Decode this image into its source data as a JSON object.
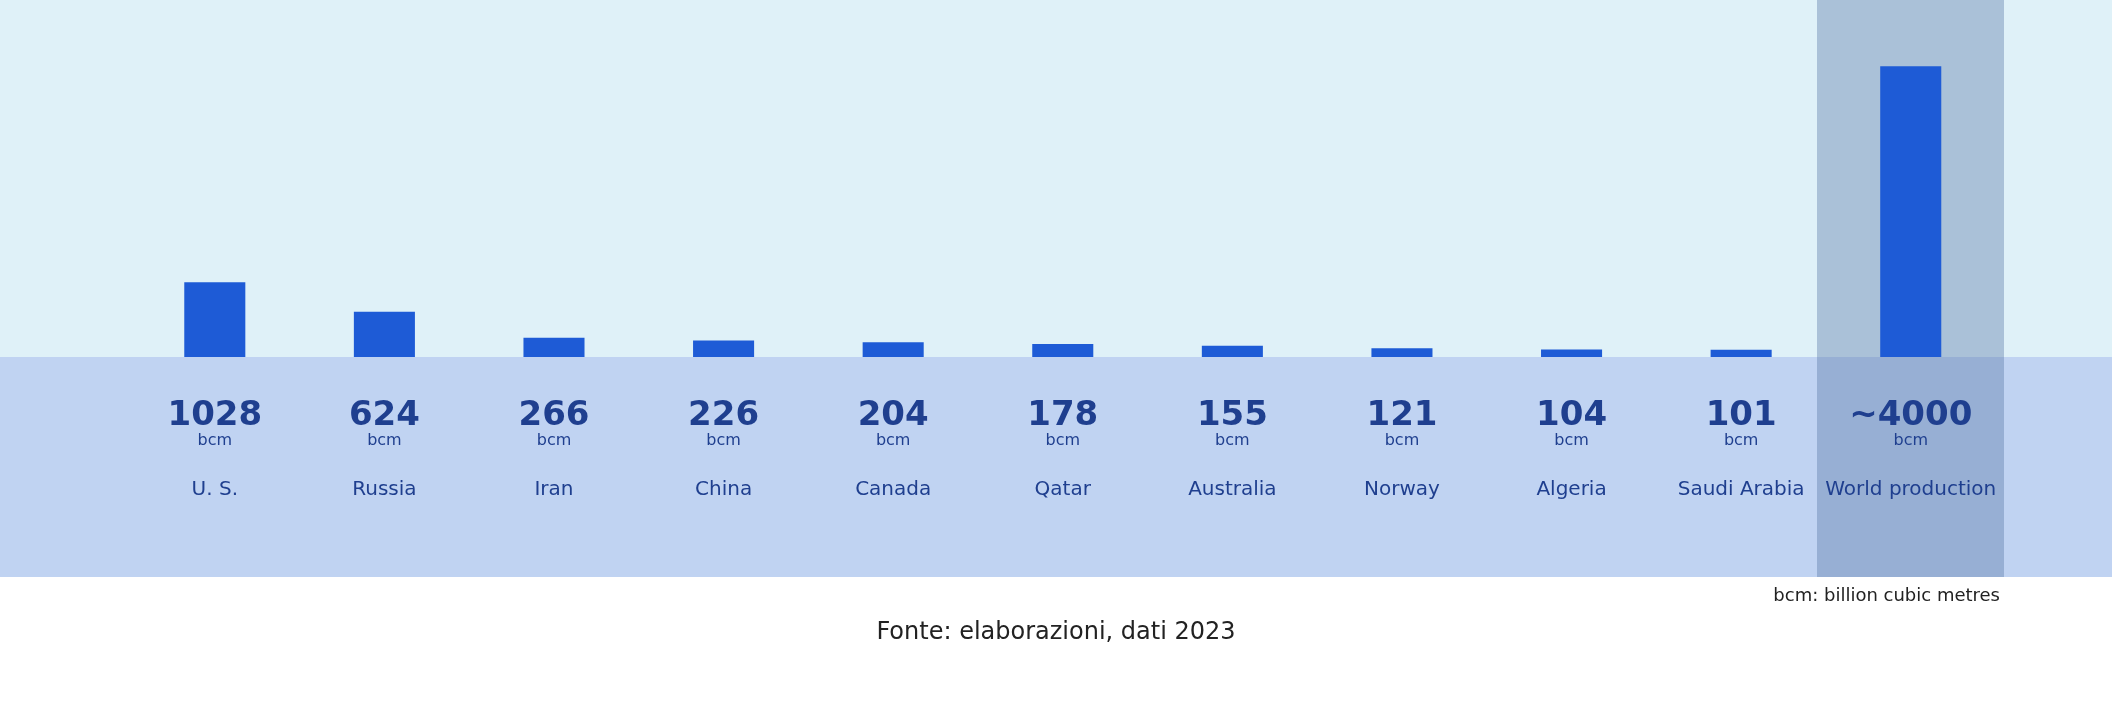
{
  "chart_data": {
    "type": "bar",
    "categories": [
      "U. S.",
      "Russia",
      "Iran",
      "China",
      "Canada",
      "Qatar",
      "Australia",
      "Norway",
      "Algeria",
      "Saudi Arabia",
      "World production"
    ],
    "values": [
      1028,
      624,
      266,
      226,
      204,
      178,
      155,
      121,
      104,
      101,
      4000
    ],
    "value_labels": [
      "1028 bcm",
      "624 bcm",
      "266 bcm",
      "226 bcm",
      "204 bcm",
      "178 bcm",
      "155 bcm",
      "121 bcm",
      "104 bcm",
      "101 bcm",
      "~4000 bcm"
    ],
    "color": "#1e5bd6",
    "annotations": [
      "bcm: billion cubic metres",
      "Fonte: elaborazioni, dati 2023"
    ]
  }
}
